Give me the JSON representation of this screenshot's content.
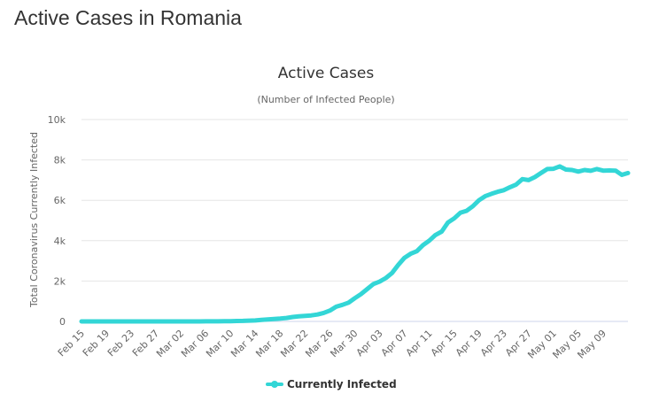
{
  "page": {
    "heading": "Active Cases in Romania"
  },
  "colors": {
    "series": "#33d6d6",
    "grid": "#e6e6e6",
    "text": "#333333",
    "muted": "#666666"
  },
  "chart_data": {
    "type": "line",
    "title": "Active Cases",
    "subtitle": "(Number of Infected People)",
    "xlabel": "",
    "ylabel": "Total Coronavirus Currently Infected",
    "ylim": [
      0,
      10000
    ],
    "y_ticks": [
      "0",
      "2k",
      "4k",
      "6k",
      "8k",
      "10k"
    ],
    "y_tick_values": [
      0,
      2000,
      4000,
      6000,
      8000,
      10000
    ],
    "x_tick_labels": [
      "Feb 15",
      "Feb 19",
      "Feb 23",
      "Feb 27",
      "Mar 02",
      "Mar 06",
      "Mar 10",
      "Mar 14",
      "Mar 18",
      "Mar 22",
      "Mar 26",
      "Mar 30",
      "Apr 03",
      "Apr 07",
      "Apr 11",
      "Apr 15",
      "Apr 19",
      "Apr 23",
      "Apr 27",
      "May 01",
      "May 05",
      "May 09"
    ],
    "x_start": "Feb 15",
    "x_end": "May 11",
    "grid": true,
    "legend_position": "bottom-center",
    "series": [
      {
        "name": "Currently Infected",
        "values": [
          0,
          0,
          0,
          0,
          0,
          0,
          0,
          0,
          0,
          0,
          0,
          0,
          0,
          0,
          0,
          1,
          1,
          1,
          2,
          2,
          3,
          4,
          6,
          9,
          12,
          20,
          25,
          40,
          50,
          80,
          100,
          120,
          140,
          170,
          220,
          250,
          270,
          300,
          340,
          420,
          540,
          730,
          820,
          930,
          1150,
          1350,
          1600,
          1850,
          1970,
          2150,
          2400,
          2800,
          3150,
          3350,
          3480,
          3780,
          4000,
          4280,
          4450,
          4900,
          5100,
          5380,
          5480,
          5700,
          6000,
          6200,
          6320,
          6420,
          6500,
          6650,
          6780,
          7050,
          7000,
          7150,
          7350,
          7550,
          7560,
          7680,
          7520,
          7500,
          7420,
          7500,
          7460,
          7550,
          7470,
          7480,
          7470,
          7260,
          7350
        ]
      }
    ]
  }
}
